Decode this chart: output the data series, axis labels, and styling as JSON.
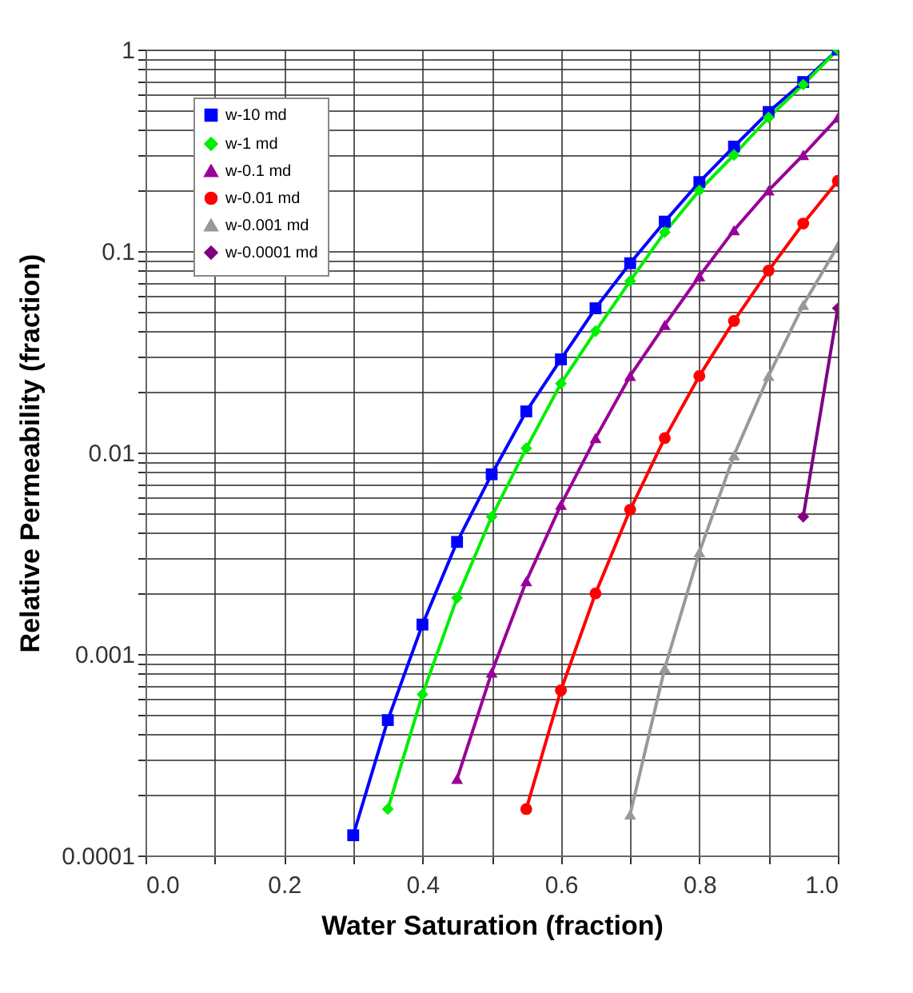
{
  "chart_data": {
    "type": "line",
    "xlabel": "Water Saturation (fraction)",
    "ylabel": "Relative Permeability (fraction)",
    "log": "y",
    "grid": true,
    "legend": "top left",
    "line_style": "solid",
    "xlim": [
      0,
      1
    ],
    "ylim": [
      0.0001,
      1
    ],
    "xticks": [
      {
        "value": 0,
        "label": "0.0"
      },
      {
        "value": 0.1,
        "label": null
      },
      {
        "value": 0.2,
        "label": "0.2"
      },
      {
        "value": 0.3,
        "label": null
      },
      {
        "value": 0.4,
        "label": "0.4"
      },
      {
        "value": 0.5,
        "label": null
      },
      {
        "value": 0.6,
        "label": "0.6"
      },
      {
        "value": 0.7,
        "label": null
      },
      {
        "value": 0.8,
        "label": "0.8"
      },
      {
        "value": 0.9,
        "label": null
      },
      {
        "value": 1,
        "label": "1.0"
      }
    ],
    "yticks": [
      0.0001,
      {
        "value": 0.0002,
        "label": null
      },
      {
        "value": 0.0003,
        "label": null
      },
      {
        "value": 0.0004,
        "label": null
      },
      {
        "value": 0.0005,
        "label": null
      },
      {
        "value": 0.0006,
        "label": null
      },
      {
        "value": 0.0007,
        "label": null
      },
      {
        "value": 0.0008,
        "label": null
      },
      {
        "value": 0.0009,
        "label": null
      },
      0.001,
      {
        "value": 0.002,
        "label": null
      },
      {
        "value": 0.003,
        "label": null
      },
      {
        "value": 0.004,
        "label": null
      },
      {
        "value": 0.005,
        "label": null
      },
      {
        "value": 0.006,
        "label": null
      },
      {
        "value": 0.007,
        "label": null
      },
      {
        "value": 0.008,
        "label": null
      },
      {
        "value": 0.009,
        "label": null
      },
      0.01,
      {
        "value": 0.02,
        "label": null
      },
      {
        "value": 0.03,
        "label": null
      },
      {
        "value": 0.04,
        "label": null
      },
      {
        "value": 0.05,
        "label": null
      },
      {
        "value": 0.06,
        "label": null
      },
      {
        "value": 0.07,
        "label": null
      },
      {
        "value": 0.08,
        "label": null
      },
      {
        "value": 0.09,
        "label": null
      },
      0.1,
      {
        "value": 0.2,
        "label": null
      },
      {
        "value": 0.3,
        "label": null
      },
      {
        "value": 0.4,
        "label": null
      },
      {
        "value": 0.5,
        "label": null
      },
      {
        "value": 0.6,
        "label": null
      },
      {
        "value": 0.7,
        "label": null
      },
      {
        "value": 0.8,
        "label": null
      },
      {
        "value": 0.9,
        "label": null
      },
      1
    ],
    "series": [
      {
        "name": "w-10 md",
        "color": "#0000ff",
        "marker": "square",
        "x": [
          0.3,
          0.35,
          0.4,
          0.45,
          0.5,
          0.55,
          0.6,
          0.65,
          0.7,
          0.75,
          0.8,
          0.85,
          0.9,
          0.95,
          1.0
        ],
        "values": [
          0.000126,
          0.00047,
          0.0014,
          0.0036,
          0.0078,
          0.016,
          0.029,
          0.052,
          0.087,
          0.14,
          0.22,
          0.33,
          0.49,
          0.69,
          1
        ]
      },
      {
        "name": "w-1 md",
        "color": "#00ee00",
        "marker": "diamond",
        "x": [
          0.35,
          0.4,
          0.45,
          0.5,
          0.55,
          0.6,
          0.65,
          0.7,
          0.75,
          0.8,
          0.85,
          0.9,
          0.95,
          1.0
        ],
        "values": [
          0.00017,
          0.00063,
          0.0019,
          0.0048,
          0.0105,
          0.022,
          0.04,
          0.071,
          0.124,
          0.2,
          0.3,
          0.46,
          0.67,
          1
        ]
      },
      {
        "name": "w-0.1 md",
        "color": "#990099",
        "marker": "triangle",
        "x": [
          0.45,
          0.5,
          0.55,
          0.6,
          0.65,
          0.7,
          0.75,
          0.8,
          0.85,
          0.9,
          0.95,
          1.0
        ],
        "values": [
          0.00024,
          0.00081,
          0.0023,
          0.0055,
          0.0118,
          0.024,
          0.043,
          0.075,
          0.127,
          0.2,
          0.3,
          0.46
        ]
      },
      {
        "name": "w-0.01 md",
        "color": "#ff0000",
        "marker": "circle",
        "x": [
          0.55,
          0.6,
          0.65,
          0.7,
          0.75,
          0.8,
          0.85,
          0.9,
          0.95,
          1.0
        ],
        "values": [
          0.00017,
          0.00066,
          0.002,
          0.0052,
          0.0118,
          0.024,
          0.045,
          0.08,
          0.137,
          0.223
        ]
      },
      {
        "name": "w-0.001 md",
        "color": "#999999",
        "marker": "triangle",
        "x": [
          0.7,
          0.75,
          0.8,
          0.85,
          0.9,
          0.95,
          1.0
        ],
        "values": [
          0.00016,
          0.00085,
          0.0032,
          0.0097,
          0.024,
          0.054,
          0.106
        ]
      },
      {
        "name": "w-0.0001 md",
        "color": "#800080",
        "marker": "diamond",
        "x": [
          0.95,
          1.0
        ],
        "values": [
          0.0048,
          0.052
        ]
      }
    ]
  }
}
